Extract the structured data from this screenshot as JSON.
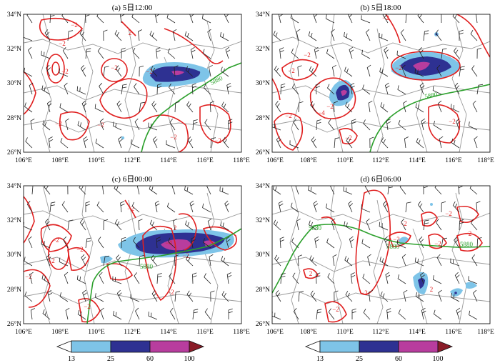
{
  "panels": [
    {
      "title": "(a) 5日12:00",
      "contour_labels": [
        "2",
        "−2",
        "−2",
        "−2",
        "−2",
        "−2",
        "−2",
        "−2",
        "−2",
        "−2"
      ],
      "ridge_label": "5880"
    },
    {
      "title": "(b) 5日18:00",
      "contour_labels": [
        "−2",
        "−2",
        "−2",
        "−2",
        "−4",
        "−2",
        "−2",
        "−2",
        "−2"
      ],
      "ridge_label": "5880"
    },
    {
      "title": "(c) 6日00:00",
      "contour_labels": [
        "−2",
        "−2",
        "−2",
        "−2",
        "−2",
        "−2",
        "2",
        "−4",
        "−2",
        "−2"
      ],
      "ridge_label": "5880"
    },
    {
      "title": "(d) 6日06:00",
      "contour_labels": [
        "−2",
        "−2",
        "−2",
        "−2",
        "2",
        "−2",
        "2",
        "−2",
        "2"
      ],
      "ridge_label": "5880",
      "ridge_label2": "5880",
      "ridge_label3": "5880"
    }
  ],
  "axes": {
    "lat_ticks": [
      "34°N",
      "32°N",
      "30°N",
      "28°N",
      "26°N"
    ],
    "lon_ticks": [
      "106°E",
      "108°E",
      "110°E",
      "112°E",
      "114°E",
      "116°E",
      "118°E"
    ]
  },
  "colorbar": {
    "ticks": [
      "13",
      "25",
      "60",
      "100"
    ],
    "colors": [
      "#ffffff",
      "#7ec4e8",
      "#2e3192",
      "#b83d9e",
      "#8a1c28"
    ]
  },
  "colors": {
    "contour": "#e02020",
    "ridge": "#2ca02c",
    "boundary": "#9a9a9a",
    "barb": "#222222"
  }
}
